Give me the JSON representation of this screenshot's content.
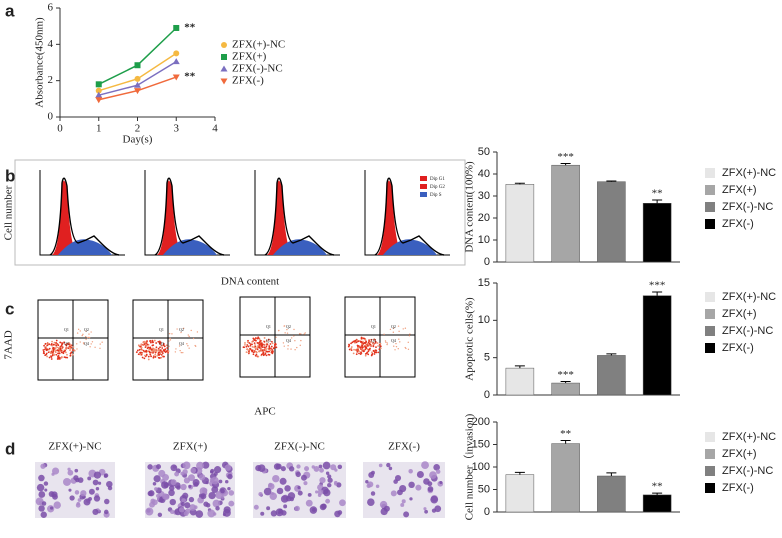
{
  "chart_data": [
    {
      "type": "line",
      "label": "a",
      "xlabel": "Day(s)",
      "ylabel": "Absorbance(450nm)",
      "x": [
        1,
        2,
        3
      ],
      "xlim": [
        0,
        4
      ],
      "xticks": [
        0,
        1,
        2,
        3,
        4
      ],
      "ylim": [
        0,
        6
      ],
      "yticks": [
        0,
        2,
        4,
        6
      ],
      "series": [
        {
          "name": "ZFX(+)-NC",
          "color": "#f5b942",
          "marker": "circle",
          "values": [
            1.45,
            2.1,
            3.5
          ]
        },
        {
          "name": "ZFX(+)",
          "color": "#1e9e4a",
          "marker": "square",
          "values": [
            1.8,
            2.85,
            4.9
          ]
        },
        {
          "name": "ZFX(-)-NC",
          "color": "#7b6fc0",
          "marker": "triangle-up",
          "values": [
            1.2,
            1.75,
            3.05
          ]
        },
        {
          "name": "ZFX(-)",
          "color": "#f06a3c",
          "marker": "triangle-down",
          "values": [
            0.95,
            1.45,
            2.2
          ]
        }
      ],
      "annotations": [
        {
          "text": "**",
          "x": 3,
          "y": 4.9
        },
        {
          "text": "**",
          "x": 3,
          "y": 2.2
        }
      ]
    },
    {
      "type": "bar",
      "label": "b",
      "ylabel": "DNA content(100%)",
      "categories": [
        "ZFX(+)-NC",
        "ZFX(+)",
        "ZFX(-)-NC",
        "ZFX(-)"
      ],
      "colors": [
        "#e6e6e6",
        "#a6a6a6",
        "#808080",
        "#000000"
      ],
      "values": [
        35.3,
        44,
        36.5,
        26.7
      ],
      "errors": [
        0.5,
        0.8,
        0.3,
        1.5
      ],
      "ylim": [
        0,
        50
      ],
      "yticks": [
        0,
        10,
        20,
        30,
        40,
        50
      ],
      "significance": [
        {
          "index": 1,
          "label": "***"
        },
        {
          "index": 3,
          "label": "**"
        }
      ]
    },
    {
      "type": "bar",
      "label": "c",
      "ylabel": "Apoptotic cells(%)",
      "categories": [
        "ZFX(+)-NC",
        "ZFX(+)",
        "ZFX(-)-NC",
        "ZFX(-)"
      ],
      "colors": [
        "#e6e6e6",
        "#a6a6a6",
        "#808080",
        "#000000"
      ],
      "values": [
        3.6,
        1.6,
        5.3,
        13.3
      ],
      "errors": [
        0.3,
        0.2,
        0.2,
        0.5
      ],
      "ylim": [
        0,
        15
      ],
      "yticks": [
        0,
        5,
        10,
        15
      ],
      "significance": [
        {
          "index": 1,
          "label": "***"
        },
        {
          "index": 3,
          "label": "***"
        }
      ]
    },
    {
      "type": "bar",
      "label": "d",
      "ylabel": "Cell number（invasion)",
      "categories": [
        "ZFX(+)-NC",
        "ZFX(+)",
        "ZFX(-)-NC",
        "ZFX(-)"
      ],
      "colors": [
        "#e6e6e6",
        "#a6a6a6",
        "#808080",
        "#000000"
      ],
      "values": [
        83,
        152,
        80,
        38
      ],
      "errors": [
        5,
        7,
        7,
        4
      ],
      "ylim": [
        0,
        200
      ],
      "yticks": [
        0,
        50,
        100,
        150,
        200
      ],
      "significance": [
        {
          "index": 1,
          "label": "**"
        },
        {
          "index": 3,
          "label": "**"
        }
      ]
    }
  ],
  "flow_histograms": {
    "ylabel": "Cell number",
    "xlabel": "DNA content",
    "legend": [
      "Dip  G1",
      "Dip  G2",
      "Dip  S"
    ]
  },
  "flow_scatter": {
    "ylabel": "7AAD",
    "xlabel": "APC",
    "quadrants": [
      "Q1",
      "Q2",
      "Q3",
      "Q4"
    ]
  },
  "invasion_images": {
    "labels": [
      "ZFX(+)-NC",
      "ZFX(+)",
      "ZFX(-)-NC",
      "ZFX(-)"
    ]
  }
}
